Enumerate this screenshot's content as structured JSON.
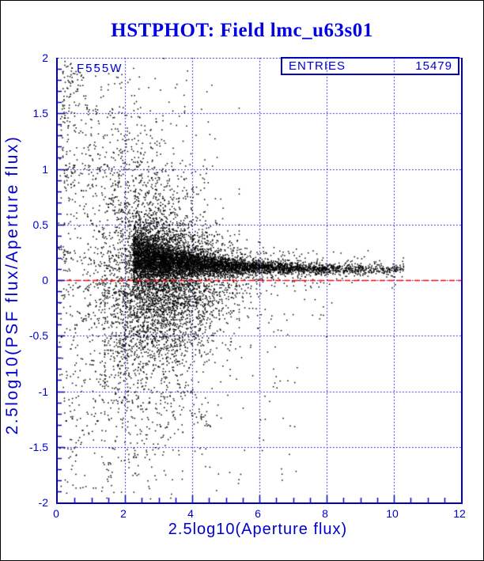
{
  "title": {
    "text": "HSTPHOT: Field lmc_u63s01",
    "color": "#0000e0"
  },
  "plot": {
    "filter_label": "F555W",
    "stats": {
      "label": "ENTRIES",
      "value": "15479"
    },
    "frame_color": "#0000bb",
    "grid_color": "#0000cc",
    "tick_color": "#0000bb",
    "label_color": "#0000cc",
    "point_color": "#000000",
    "refline_color": "#ff0000"
  },
  "chart_data": {
    "type": "scatter",
    "title": "HSTPHOT: Field lmc_u63s01",
    "xlabel": "2.5log10(Aperture flux)",
    "ylabel": "2.5log10(PSF flux/Aperture flux)",
    "legend": "F555W",
    "entries": 15479,
    "xlim": [
      0,
      12
    ],
    "ylim": [
      -2,
      2
    ],
    "xticks": [
      "0",
      "2",
      "4",
      "6",
      "8",
      "10",
      "12"
    ],
    "yticks": [
      "2",
      "1.5",
      "1",
      "0.5",
      "0",
      "-0.5",
      "-1",
      "-1.5",
      "-2"
    ],
    "x_minor_step": 0.5,
    "y_minor_step": 0.1,
    "grid": {
      "style": "dotted",
      "x_lines": [
        2,
        4,
        6,
        8,
        10
      ],
      "y_lines": [
        2,
        1.5,
        1,
        0.5,
        0,
        -0.5,
        -1,
        -1.5
      ]
    },
    "refline": {
      "y": 0,
      "style": "dashed",
      "color": "#ff0000"
    },
    "description": "PSF-to-aperture flux ratio vs aperture flux; dense band converging to ~+0.1 at bright end (x~10.3), broad funnel of scatter at faint end with radial streaks fanning out from ~(2.3, 0).",
    "point_model": {
      "seed": 1337,
      "point_size": 1.5,
      "components": [
        {
          "kind": "band",
          "n": 6200,
          "x0": 2.25,
          "span": 8.05,
          "exp_scale": 2.6,
          "mu_base": 0.09,
          "mu_amp": 0.35,
          "mu_scale": 2.2,
          "sig_base": 0.02,
          "sig_amp": 0.45,
          "sig_scale": 1.6,
          "narrow_frac": 0.78,
          "wide_mult": 3.2
        },
        {
          "kind": "cloud",
          "n": 3400,
          "x_mean": 2.85,
          "x_sd": 1.0,
          "x_min": 0.2,
          "x_max": 5.4,
          "y_mean": 0.07,
          "sig_base": 0.12,
          "sig_amp": 1.05,
          "sig_scale": 2.0,
          "narrow_frac": 0.7,
          "wide_mult": 2.2,
          "down_bias": 1.25
        },
        {
          "kind": "downtail",
          "n": 750,
          "x_mean": 3.3,
          "x_sd": 1.15,
          "x_min": 1.4,
          "x_max": 7.6,
          "depth_base": 0.08,
          "depth_amp": 0.55,
          "depth_scale": 4.0,
          "y_top": -0.04
        },
        {
          "kind": "box",
          "n": 70,
          "x_min": 0.15,
          "x_max": 1.35,
          "y_min": 1.5,
          "y_max": 1.97,
          "x_pow": 1.6
        },
        {
          "kind": "box",
          "n": 100,
          "x_min": 0.1,
          "x_max": 2.6,
          "y_min": 1.0,
          "y_max": 1.55,
          "x_pow": 1.4
        },
        {
          "kind": "box",
          "n": 80,
          "x_min": 0.2,
          "x_max": 4.5,
          "y_min": 0.8,
          "y_max": 1.05,
          "x_pow": 1.7
        },
        {
          "kind": "box",
          "n": 160,
          "x_min": 0.4,
          "x_max": 7.2,
          "y_min": -1.9,
          "y_max": -0.5,
          "x_pow": 1.3
        },
        {
          "kind": "box",
          "n": 18,
          "x_min": 6.2,
          "x_max": 8.2,
          "y_min": -0.75,
          "y_max": -0.05,
          "x_pow": 1.0
        },
        {
          "kind": "column",
          "n": 100,
          "x_min": 0.05,
          "x_max": 0.55,
          "y_min": -1.95,
          "y_max": 1.95
        },
        {
          "kind": "rays",
          "count": 26,
          "cx": 2.35,
          "cy": 0.03,
          "pts_min": 9,
          "pts_max": 26,
          "ang_start": 95,
          "ang_end": 345,
          "r_max": 2.3,
          "x_stretch": 1.9,
          "y_stretch": 0.78,
          "jitter": 0.025
        },
        {
          "kind": "uniform",
          "n": 120,
          "x_min": 0.3,
          "x_max": 5.0,
          "y_min": -1.9,
          "y_max": 1.9,
          "x_pow": 1.3
        }
      ]
    }
  }
}
